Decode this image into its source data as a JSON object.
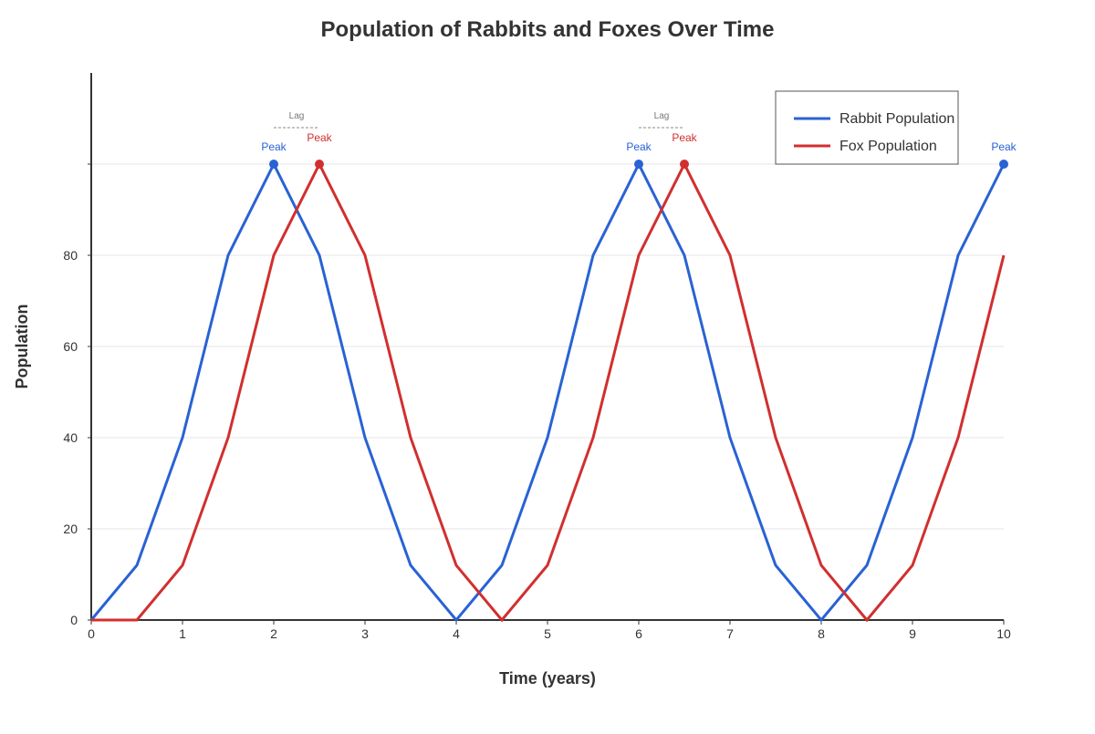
{
  "chart_data": {
    "type": "line",
    "title": "Population of Rabbits and Foxes Over Time",
    "xlabel": "Time (years)",
    "ylabel": "Population",
    "xlim": [
      0,
      10
    ],
    "ylim": [
      0,
      100
    ],
    "x_ticks": [
      0,
      1,
      2,
      3,
      4,
      5,
      6,
      7,
      8,
      9,
      10
    ],
    "y_ticks": [
      0,
      20,
      40,
      60,
      80
    ],
    "grid_y": true,
    "legend_position": "top-right",
    "x": [
      0,
      0.5,
      1,
      1.5,
      2,
      2.5,
      3,
      3.5,
      4,
      4.5,
      5,
      5.5,
      6,
      6.5,
      7,
      7.5,
      8,
      8.5,
      9,
      9.5,
      10
    ],
    "series": [
      {
        "name": "Rabbit Population",
        "color": "#2962d4",
        "values": [
          0,
          12,
          40,
          80,
          100,
          80,
          40,
          12,
          0,
          12,
          40,
          80,
          100,
          80,
          40,
          12,
          0,
          12,
          40,
          80,
          100
        ]
      },
      {
        "name": "Fox Population",
        "color": "#d12f2f",
        "values": [
          0,
          0,
          12,
          40,
          80,
          100,
          80,
          40,
          12,
          0,
          12,
          40,
          80,
          100,
          80,
          40,
          12,
          0,
          12,
          40,
          80
        ]
      }
    ],
    "annotations": {
      "peaks": [
        {
          "series": 0,
          "x": 2,
          "y": 100,
          "label": "Peak"
        },
        {
          "series": 1,
          "x": 2.5,
          "y": 100,
          "label": "Peak"
        },
        {
          "series": 0,
          "x": 6,
          "y": 100,
          "label": "Peak"
        },
        {
          "series": 1,
          "x": 6.5,
          "y": 100,
          "label": "Peak"
        },
        {
          "series": 0,
          "x": 10,
          "y": 100,
          "label": "Peak"
        }
      ],
      "lags": [
        {
          "x_start": 2,
          "x_end": 2.5,
          "label": "Lag"
        },
        {
          "x_start": 6,
          "x_end": 6.5,
          "label": "Lag"
        }
      ]
    }
  }
}
